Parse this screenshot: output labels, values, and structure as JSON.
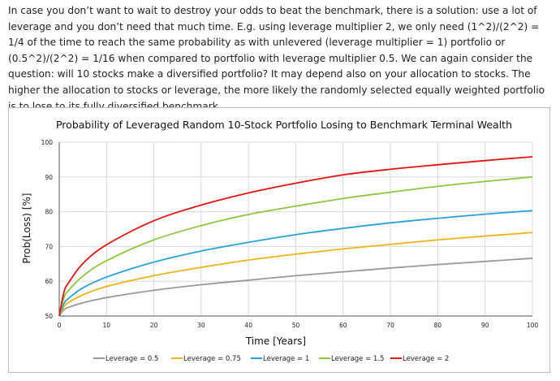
{
  "article": {
    "paragraph": "In case you don’t want to wait to destroy your odds to beat the benchmark, there is a solution: use a lot of leverage and you don’t need that much time. E.g. using leverage multiplier 2, we only need (1^2)/(2^2) = 1/4 of the time to reach the same probability as with unlevered (leverage multiplier = 1) portfolio or (0.5^2)/(2^2) = 1/16 when compared to portfolio with leverage multiplier 0.5. We can again consider the question: will 10 stocks make a diversified portfolio? It may depend also on your allocation to stocks. The higher the allocation to stocks or leverage, the more likely the randomly selected equally weighted portfolio is to lose to its fully diversified benchmark."
  },
  "chart_data": {
    "type": "line",
    "title": "Probability of Leveraged Random 10-Stock Portfolio Losing to Benchmark Terminal Wealth",
    "xlabel": "Time [Years]",
    "ylabel": "Prob(Loss) [%]",
    "xlim": [
      0,
      100
    ],
    "ylim": [
      50,
      100
    ],
    "xticks": [
      0,
      10,
      20,
      30,
      40,
      50,
      60,
      70,
      80,
      90,
      100
    ],
    "yticks": [
      50,
      60,
      70,
      80,
      90,
      100
    ],
    "grid": true,
    "legend_position": "bottom",
    "x": [
      0,
      1,
      2,
      5,
      10,
      20,
      30,
      40,
      50,
      60,
      70,
      80,
      90,
      100
    ],
    "series": [
      {
        "name": "Leverage = 0.5",
        "color": "#999999",
        "values": [
          50,
          51.8,
          52.5,
          53.8,
          55.3,
          57.4,
          59.0,
          60.3,
          61.6,
          62.7,
          63.8,
          64.8,
          65.7,
          66.6
        ]
      },
      {
        "name": "Leverage = 0.75",
        "color": "#f0b31c",
        "values": [
          50,
          52.7,
          53.9,
          56.1,
          58.5,
          61.6,
          64.0,
          66.1,
          67.8,
          69.3,
          70.6,
          71.9,
          73.0,
          74.0
        ]
      },
      {
        "name": "Leverage = 1",
        "color": "#2aa1d8",
        "values": [
          50,
          53.6,
          55.1,
          58.1,
          61.2,
          65.5,
          68.7,
          71.2,
          73.4,
          75.2,
          76.8,
          78.1,
          79.3,
          80.3
        ]
      },
      {
        "name": "Leverage = 1.5",
        "color": "#8dc63f",
        "values": [
          50,
          55.3,
          57.4,
          61.5,
          65.9,
          71.9,
          76.0,
          79.2,
          81.6,
          83.8,
          85.6,
          87.3,
          88.7,
          90.0
        ]
      },
      {
        "name": "Leverage = 2",
        "color": "#e3140f",
        "values": [
          50,
          56.9,
          59.6,
          65.1,
          70.5,
          77.4,
          81.9,
          85.4,
          88.2,
          90.6,
          92.2,
          93.5,
          94.7,
          95.8
        ]
      }
    ]
  }
}
